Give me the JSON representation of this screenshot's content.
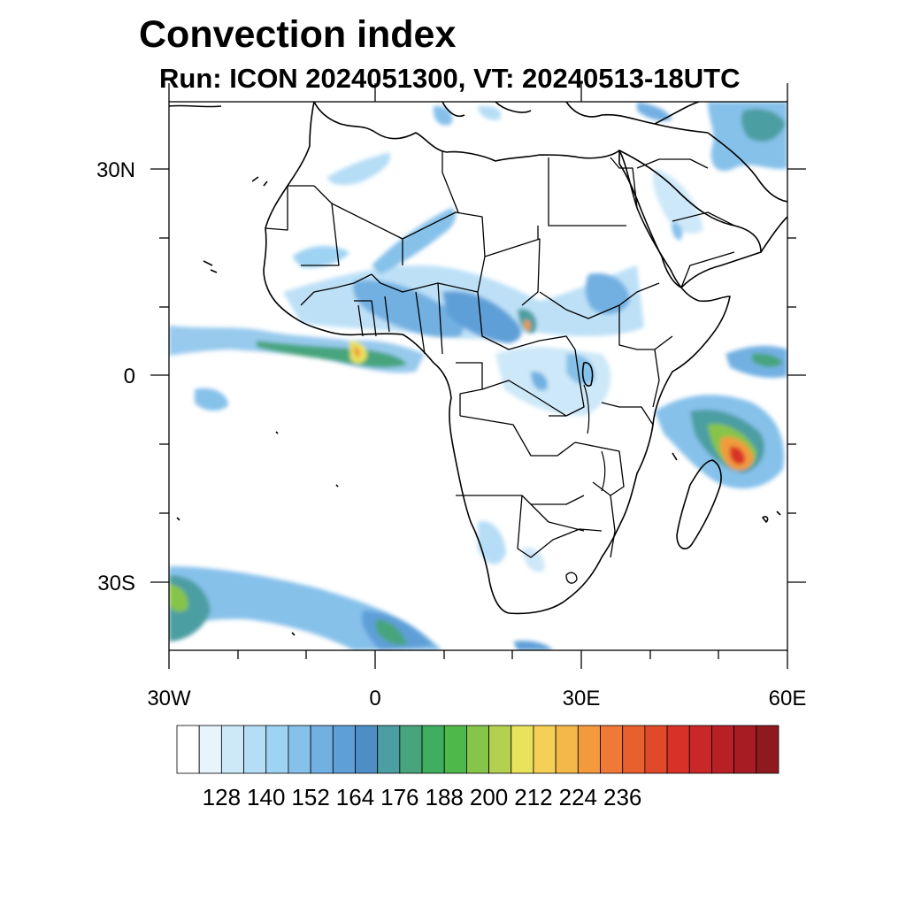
{
  "title": "Convection index",
  "subtitle": "Run: ICON 2024051300,  VT: 20240513-18UTC",
  "axes": {
    "lat_labels": [
      "30N",
      "0",
      "30S"
    ],
    "lon_labels": [
      "30W",
      "0",
      "30E",
      "60E"
    ],
    "lat_range": [
      -40,
      40
    ],
    "lon_range": [
      -30,
      60
    ]
  },
  "colorbar": {
    "labels": [
      "128",
      "140",
      "152",
      "164",
      "176",
      "188",
      "200",
      "212",
      "224",
      "236"
    ],
    "colors": [
      "#ffffff",
      "#e8f4fc",
      "#cde8f8",
      "#b6ddf6",
      "#9fd3f3",
      "#86c1ea",
      "#72b0e2",
      "#5f9fd8",
      "#4d8fc4",
      "#4b9ea2",
      "#47a47c",
      "#3fae5e",
      "#4fb84a",
      "#86c44a",
      "#b3d050",
      "#e8e25c",
      "#f6cf56",
      "#f4b84a",
      "#f39a3e",
      "#ef7a36",
      "#e8602e",
      "#e04a2a",
      "#d83228",
      "#c92728",
      "#b81f26",
      "#a61c22",
      "#8f1a1e"
    ]
  },
  "palette": {
    "light_blue": "#9fd3f3",
    "mid_blue": "#5f9fd8",
    "teal": "#4b9ea2",
    "green": "#3fae5e",
    "yellow_green": "#b3d050",
    "yellow": "#e8e25c",
    "orange": "#f39a3e",
    "red": "#d83228"
  }
}
